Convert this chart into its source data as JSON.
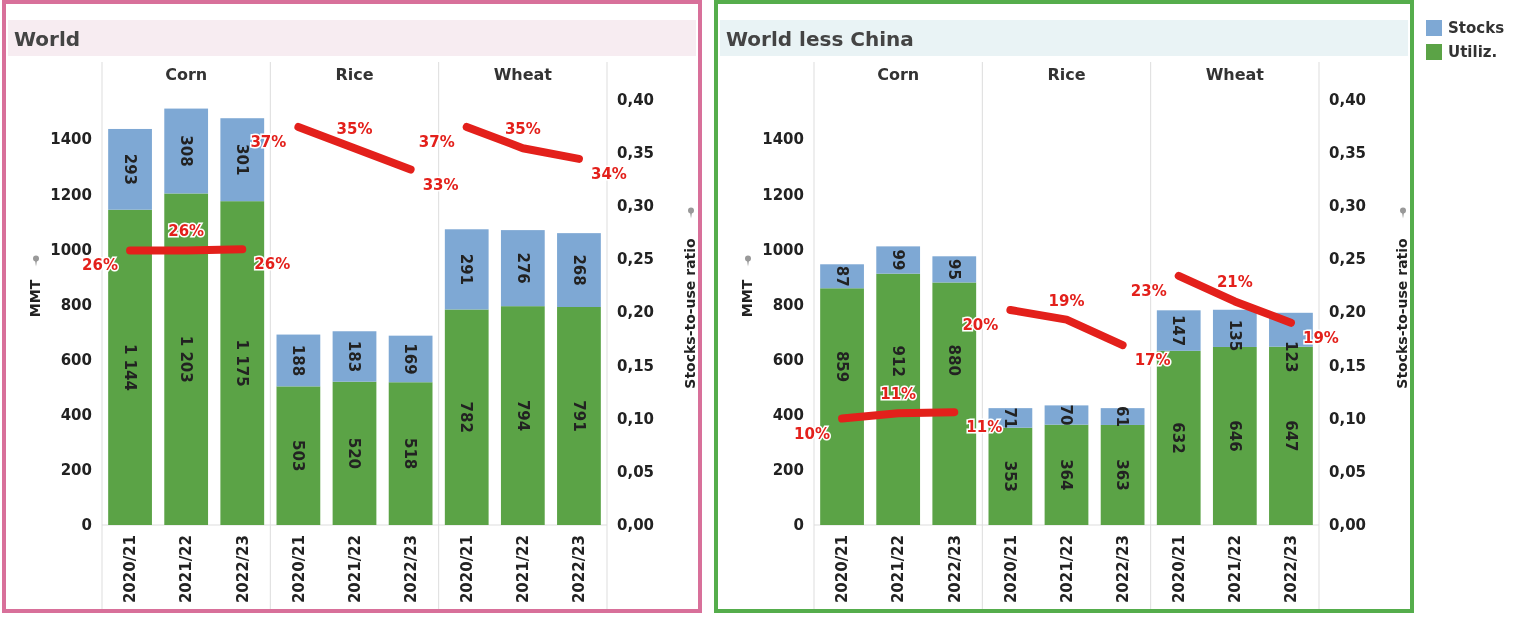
{
  "chart_data": [
    {
      "type": "bar",
      "stacked": true,
      "title": "World",
      "ylabel": "MMT",
      "legend": "right",
      "y2label": "Stocks-to-use ratio",
      "annotations": [
        "Corn",
        "Rice",
        "Wheat"
      ],
      "categories": [
        "2020/21",
        "2021/22",
        "2022/23",
        "2020/21",
        "2021/22",
        "2022/23",
        "2020/21",
        "2021/22",
        "2022/23"
      ],
      "ylim": [
        0,
        1680
      ],
      "yticks": [
        0,
        200,
        400,
        600,
        800,
        1000,
        1200,
        1400
      ],
      "y2lim": [
        0,
        0.435
      ],
      "y2ticks": [
        {
          "value": 0,
          "label": "0,00"
        },
        {
          "value": 0.05,
          "label": "0,05"
        },
        {
          "value": 0.1,
          "label": "0,10"
        },
        {
          "value": 0.15,
          "label": "0,15"
        },
        {
          "value": 0.2,
          "label": "0,20"
        },
        {
          "value": 0.25,
          "label": "0,25"
        },
        {
          "value": 0.3,
          "label": "0,30"
        },
        {
          "value": 0.35,
          "label": "0,35"
        },
        {
          "value": 0.4,
          "label": "0,40"
        }
      ],
      "series": [
        {
          "name": "Utiliz.",
          "color": "#5ba346",
          "values": [
            1144,
            1203,
            1175,
            503,
            520,
            518,
            782,
            794,
            791
          ],
          "value_labels": [
            "1 144",
            "1 203",
            "1 175",
            "503",
            "520",
            "518",
            "782",
            "794",
            "791"
          ]
        },
        {
          "name": "Stocks",
          "color": "#7ea8d4",
          "values": [
            293,
            308,
            301,
            188,
            183,
            169,
            291,
            276,
            268
          ],
          "value_labels": [
            "293",
            "308",
            "301",
            "188",
            "183",
            "169",
            "291",
            "276",
            "268"
          ]
        },
        {
          "type": "line",
          "axis": "y2",
          "color": "#e3201b",
          "values": [
            0.258,
            0.258,
            0.259,
            null,
            null,
            null,
            null,
            null,
            null
          ],
          "value_labels": [
            "26%",
            "26%",
            "26%",
            null,
            null,
            null,
            null,
            null,
            null
          ]
        },
        {
          "type": "line",
          "axis": "y2",
          "color": "#e3201b",
          "values": [
            null,
            null,
            null,
            0.374,
            0.354,
            0.334,
            null,
            null,
            null
          ],
          "value_labels": [
            null,
            null,
            null,
            "37%",
            "35%",
            "33%",
            null,
            null,
            null
          ]
        },
        {
          "type": "line",
          "axis": "y2",
          "color": "#e3201b",
          "values": [
            null,
            null,
            null,
            null,
            null,
            null,
            0.374,
            0.354,
            0.344
          ],
          "value_labels": [
            null,
            null,
            null,
            null,
            null,
            null,
            "37%",
            "35%",
            "34%"
          ]
        }
      ]
    },
    {
      "type": "bar",
      "stacked": true,
      "title": "World less China",
      "ylabel": "MMT",
      "y2label": "Stocks-to-use ratio",
      "annotations": [
        "Corn",
        "Rice",
        "Wheat"
      ],
      "legend": "right",
      "categories": [
        "2020/21",
        "2021/22",
        "2022/23",
        "2020/21",
        "2021/22",
        "2022/23",
        "2020/21",
        "2021/22",
        "2022/23"
      ],
      "ylim": [
        0,
        1680
      ],
      "yticks": [
        0,
        200,
        400,
        600,
        800,
        1000,
        1200,
        1400
      ],
      "y2lim": [
        0,
        0.435
      ],
      "y2ticks": [
        {
          "value": 0,
          "label": "0,00"
        },
        {
          "value": 0.05,
          "label": "0,05"
        },
        {
          "value": 0.1,
          "label": "0,10"
        },
        {
          "value": 0.15,
          "label": "0,15"
        },
        {
          "value": 0.2,
          "label": "0,20"
        },
        {
          "value": 0.25,
          "label": "0,25"
        },
        {
          "value": 0.3,
          "label": "0,30"
        },
        {
          "value": 0.35,
          "label": "0,35"
        },
        {
          "value": 0.4,
          "label": "0,40"
        }
      ],
      "series": [
        {
          "name": "Utiliz.",
          "color": "#5ba346",
          "values": [
            859,
            912,
            880,
            353,
            364,
            363,
            632,
            646,
            647
          ],
          "value_labels": [
            "859",
            "912",
            "880",
            "353",
            "364",
            "363",
            "632",
            "646",
            "647"
          ]
        },
        {
          "name": "Stocks",
          "color": "#7ea8d4",
          "values": [
            87,
            99,
            95,
            71,
            70,
            61,
            147,
            135,
            123
          ],
          "value_labels": [
            "87",
            "99",
            "95",
            "71",
            "70",
            "61",
            "147",
            "135",
            "123"
          ]
        },
        {
          "type": "line",
          "axis": "y2",
          "color": "#e3201b",
          "values": [
            0.1,
            0.105,
            0.106,
            null,
            null,
            null,
            null,
            null,
            null
          ],
          "value_labels": [
            "10%",
            "11%",
            "11%",
            null,
            null,
            null,
            null,
            null,
            null
          ]
        },
        {
          "type": "line",
          "axis": "y2",
          "color": "#e3201b",
          "values": [
            null,
            null,
            null,
            0.202,
            0.193,
            0.169,
            null,
            null,
            null
          ],
          "value_labels": [
            null,
            null,
            null,
            "20%",
            "19%",
            "17%",
            null,
            null,
            null
          ]
        },
        {
          "type": "line",
          "axis": "y2",
          "color": "#e3201b",
          "values": [
            null,
            null,
            null,
            null,
            null,
            null,
            0.234,
            0.21,
            0.19
          ],
          "value_labels": [
            null,
            null,
            null,
            null,
            null,
            null,
            "23%",
            "21%",
            "19%"
          ]
        }
      ]
    }
  ]
}
